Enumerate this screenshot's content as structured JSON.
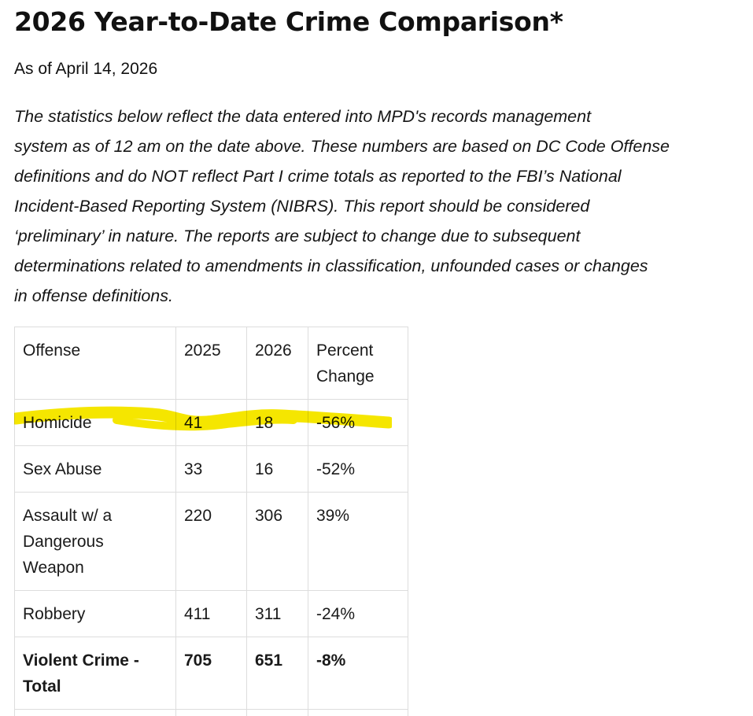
{
  "page": {
    "title": "2026 Year-to-Date Crime Comparison*",
    "as_of": "As of April 14, 2026",
    "disclaimer_lines": [
      "The statistics below reflect the data entered into MPD's records management",
      "system as of 12 am on the date above. These numbers are based on DC Code Offense",
      "definitions and do NOT reflect Part I crime totals as reported to the FBI’s National",
      "Incident-Based Reporting System (NIBRS). This report should be considered",
      "‘preliminary’ in nature. The reports are subject to change due to subsequent",
      "determinations related to amendments in classification, unfounded cases or changes",
      "in offense definitions."
    ]
  },
  "table": {
    "headers": {
      "offense": "Offense",
      "y2025": "2025",
      "y2026": "2026",
      "change_line1": "Percent",
      "change_line2": "Change"
    },
    "rows": [
      {
        "offense": "Homicide",
        "y2025": "41",
        "y2026": "18",
        "change": "-56%"
      },
      {
        "offense": "Sex Abuse",
        "y2025": "33",
        "y2026": "16",
        "change": "-52%"
      },
      {
        "offense_lines": [
          "Assault w/ a",
          "Dangerous",
          "Weapon"
        ],
        "y2025": "220",
        "y2026": "306",
        "change": "39%"
      },
      {
        "offense": "Robbery",
        "y2025": "411",
        "y2026": "311",
        "change": "-24%"
      }
    ],
    "total": {
      "offense_lines": [
        "Violent Crime -",
        "Total"
      ],
      "y2025": "705",
      "y2026": "651",
      "change": "-8%"
    }
  },
  "annotation": {
    "highlight_color": "#f5e600",
    "highlighted_row": "Homicide"
  }
}
